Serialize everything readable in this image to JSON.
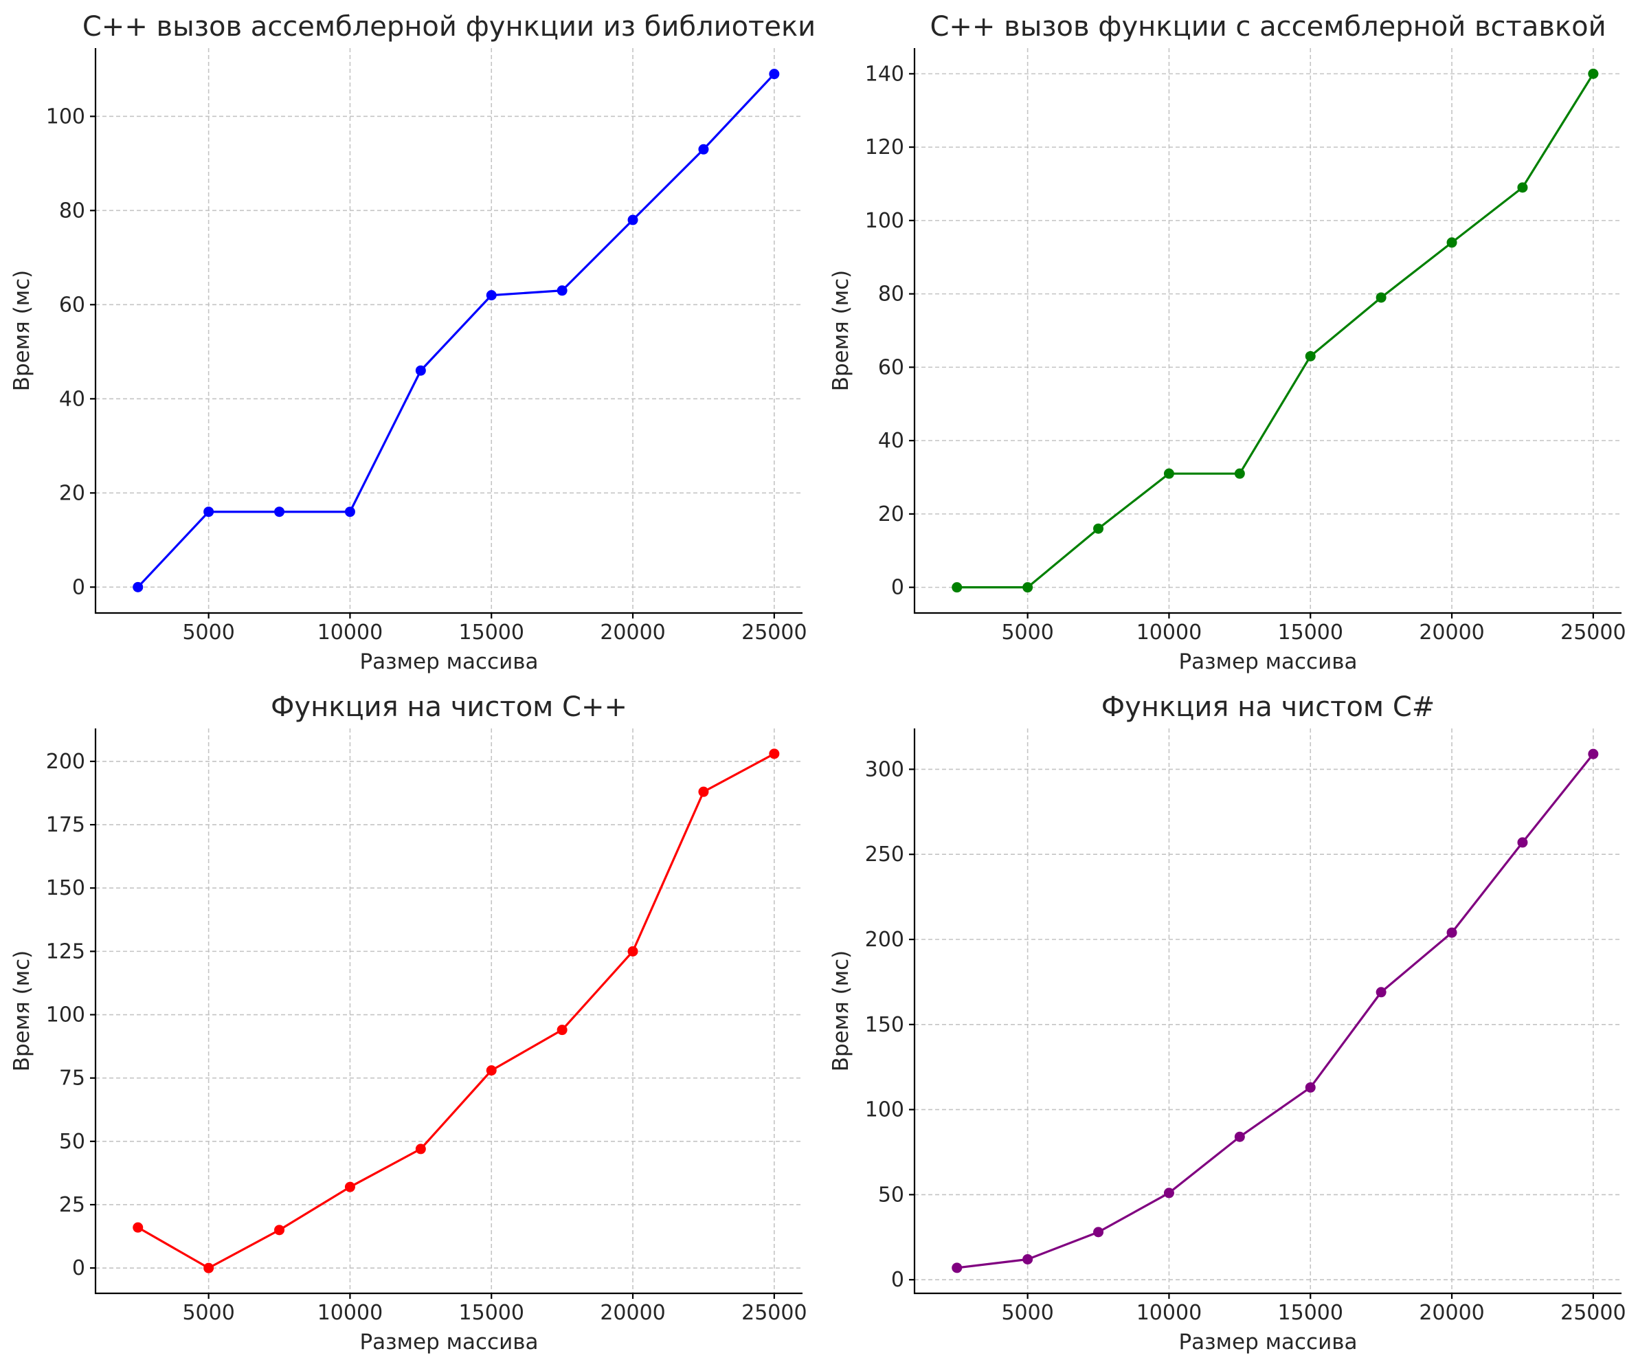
{
  "chart_data": [
    {
      "type": "line",
      "title": "C++ вызов ассемблерной функции из библиотеки",
      "xlabel": "Размер массива",
      "ylabel": "Время (мс)",
      "color": "#0000ff",
      "x": [
        2500,
        5000,
        7500,
        10000,
        12500,
        15000,
        17500,
        20000,
        22500,
        25000
      ],
      "y": [
        0,
        16,
        16,
        16,
        46,
        62,
        63,
        78,
        93,
        109
      ],
      "xticks": [
        5000,
        10000,
        15000,
        20000,
        25000
      ],
      "yticks": [
        0,
        20,
        40,
        60,
        80,
        100
      ],
      "xlim": [
        1000,
        26000
      ],
      "ylim": [
        -5.5,
        114.5
      ],
      "grid": true
    },
    {
      "type": "line",
      "title": "C++ вызов функции с ассемблерной вставкой",
      "xlabel": "Размер массива",
      "ylabel": "Время (мс)",
      "color": "#008000",
      "x": [
        2500,
        5000,
        7500,
        10000,
        12500,
        15000,
        17500,
        20000,
        22500,
        25000
      ],
      "y": [
        0,
        0,
        16,
        31,
        31,
        63,
        79,
        94,
        109,
        140
      ],
      "xticks": [
        5000,
        10000,
        15000,
        20000,
        25000
      ],
      "yticks": [
        0,
        20,
        40,
        60,
        80,
        100,
        120,
        140
      ],
      "xlim": [
        1000,
        26000
      ],
      "ylim": [
        -7,
        147
      ],
      "grid": true
    },
    {
      "type": "line",
      "title": "Функция на чистом C++",
      "xlabel": "Размер массива",
      "ylabel": "Время (мс)",
      "color": "#ff0000",
      "x": [
        2500,
        5000,
        7500,
        10000,
        12500,
        15000,
        17500,
        20000,
        22500,
        25000
      ],
      "y": [
        16,
        0,
        15,
        32,
        47,
        78,
        94,
        125,
        188,
        203
      ],
      "xticks": [
        5000,
        10000,
        15000,
        20000,
        25000
      ],
      "yticks": [
        0,
        25,
        50,
        75,
        100,
        125,
        150,
        175,
        200
      ],
      "xlim": [
        1000,
        26000
      ],
      "ylim": [
        -10,
        213
      ],
      "grid": true
    },
    {
      "type": "line",
      "title": "Функция на чистом C#",
      "xlabel": "Размер массива",
      "ylabel": "Время (мс)",
      "color": "#800080",
      "x": [
        2500,
        5000,
        7500,
        10000,
        12500,
        15000,
        17500,
        20000,
        22500,
        25000
      ],
      "y": [
        7,
        12,
        28,
        51,
        84,
        113,
        169,
        204,
        257,
        309
      ],
      "xticks": [
        5000,
        10000,
        15000,
        20000,
        25000
      ],
      "yticks": [
        0,
        50,
        100,
        150,
        200,
        250,
        300
      ],
      "xlim": [
        1000,
        26000
      ],
      "ylim": [
        -8,
        324
      ],
      "grid": true
    }
  ]
}
